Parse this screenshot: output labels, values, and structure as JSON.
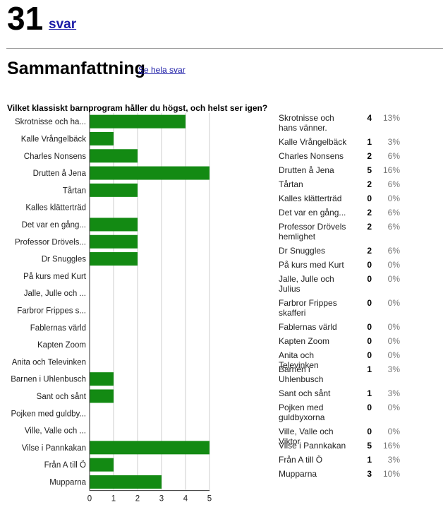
{
  "header": {
    "count": "31",
    "svar_link": "svar"
  },
  "summary": {
    "title": "Sammanfattning",
    "see_all_link": "Se hela svar"
  },
  "question": "Vilket klassiskt barnprogram håller du högst, och helst ser igen?",
  "chart_data": {
    "type": "bar",
    "orientation": "horizontal",
    "categories": [
      "Skrotnisse och ha...",
      "Kalle Vrångelbäck",
      "Charles Nonsens",
      "Drutten å Jena",
      "Tårtan",
      "Kalles klätterträd",
      "Det var en gång...",
      "Professor Drövels...",
      "Dr Snuggles",
      "På kurs med Kurt",
      "Jalle, Julle och ...",
      "Farbror Frippes s...",
      "Fablernas värld",
      "Kapten Zoom",
      "Anita och Televinken",
      "Barnen i Uhlenbusch",
      "Sant och sånt",
      "Pojken med guldby...",
      "Ville, Valle och ...",
      "Vilse i Pannkakan",
      "Från A till Ö",
      "Mupparna"
    ],
    "values": [
      4,
      1,
      2,
      5,
      2,
      0,
      2,
      2,
      2,
      0,
      0,
      0,
      0,
      0,
      0,
      1,
      1,
      0,
      0,
      5,
      1,
      3
    ],
    "xlim": [
      0,
      5
    ],
    "xticks": [
      "0",
      "1",
      "2",
      "3",
      "4",
      "5"
    ],
    "bar_color": "#138a13"
  },
  "stats": [
    {
      "name": "Skrotnisse och hans vänner.",
      "count": "4",
      "pct": "13%"
    },
    {
      "name": "Kalle Vrångelbäck",
      "count": "1",
      "pct": "3%"
    },
    {
      "name": "Charles Nonsens",
      "count": "2",
      "pct": "6%"
    },
    {
      "name": "Drutten å Jena",
      "count": "5",
      "pct": "16%"
    },
    {
      "name": "Tårtan",
      "count": "2",
      "pct": "6%"
    },
    {
      "name": "Kalles klätterträd",
      "count": "0",
      "pct": "0%"
    },
    {
      "name": "Det var en gång...",
      "count": "2",
      "pct": "6%"
    },
    {
      "name": "Professor Drövels hemlighet",
      "count": "2",
      "pct": "6%"
    },
    {
      "name": "Dr Snuggles",
      "count": "2",
      "pct": "6%"
    },
    {
      "name": "På kurs med Kurt",
      "count": "0",
      "pct": "0%"
    },
    {
      "name": "Jalle, Julle och Julius",
      "count": "0",
      "pct": "0%"
    },
    {
      "name": "Farbror Frippes skafferi",
      "count": "0",
      "pct": "0%"
    },
    {
      "name": "Fablernas värld",
      "count": "0",
      "pct": "0%"
    },
    {
      "name": "Kapten Zoom",
      "count": "0",
      "pct": "0%"
    },
    {
      "name": "Anita och Televinken",
      "count": "0",
      "pct": "0%"
    },
    {
      "name": "Barnen i Uhlenbusch",
      "count": "1",
      "pct": "3%"
    },
    {
      "name": "Sant och sånt",
      "count": "1",
      "pct": "3%"
    },
    {
      "name": "Pojken med guldbyxorna",
      "count": "0",
      "pct": "0%"
    },
    {
      "name": "Ville, Valle och Viktor",
      "count": "0",
      "pct": "0%"
    },
    {
      "name": "Vilse i Pannkakan",
      "count": "5",
      "pct": "16%"
    },
    {
      "name": "Från A till Ö",
      "count": "1",
      "pct": "3%"
    },
    {
      "name": "Mupparna",
      "count": "3",
      "pct": "10%"
    }
  ]
}
